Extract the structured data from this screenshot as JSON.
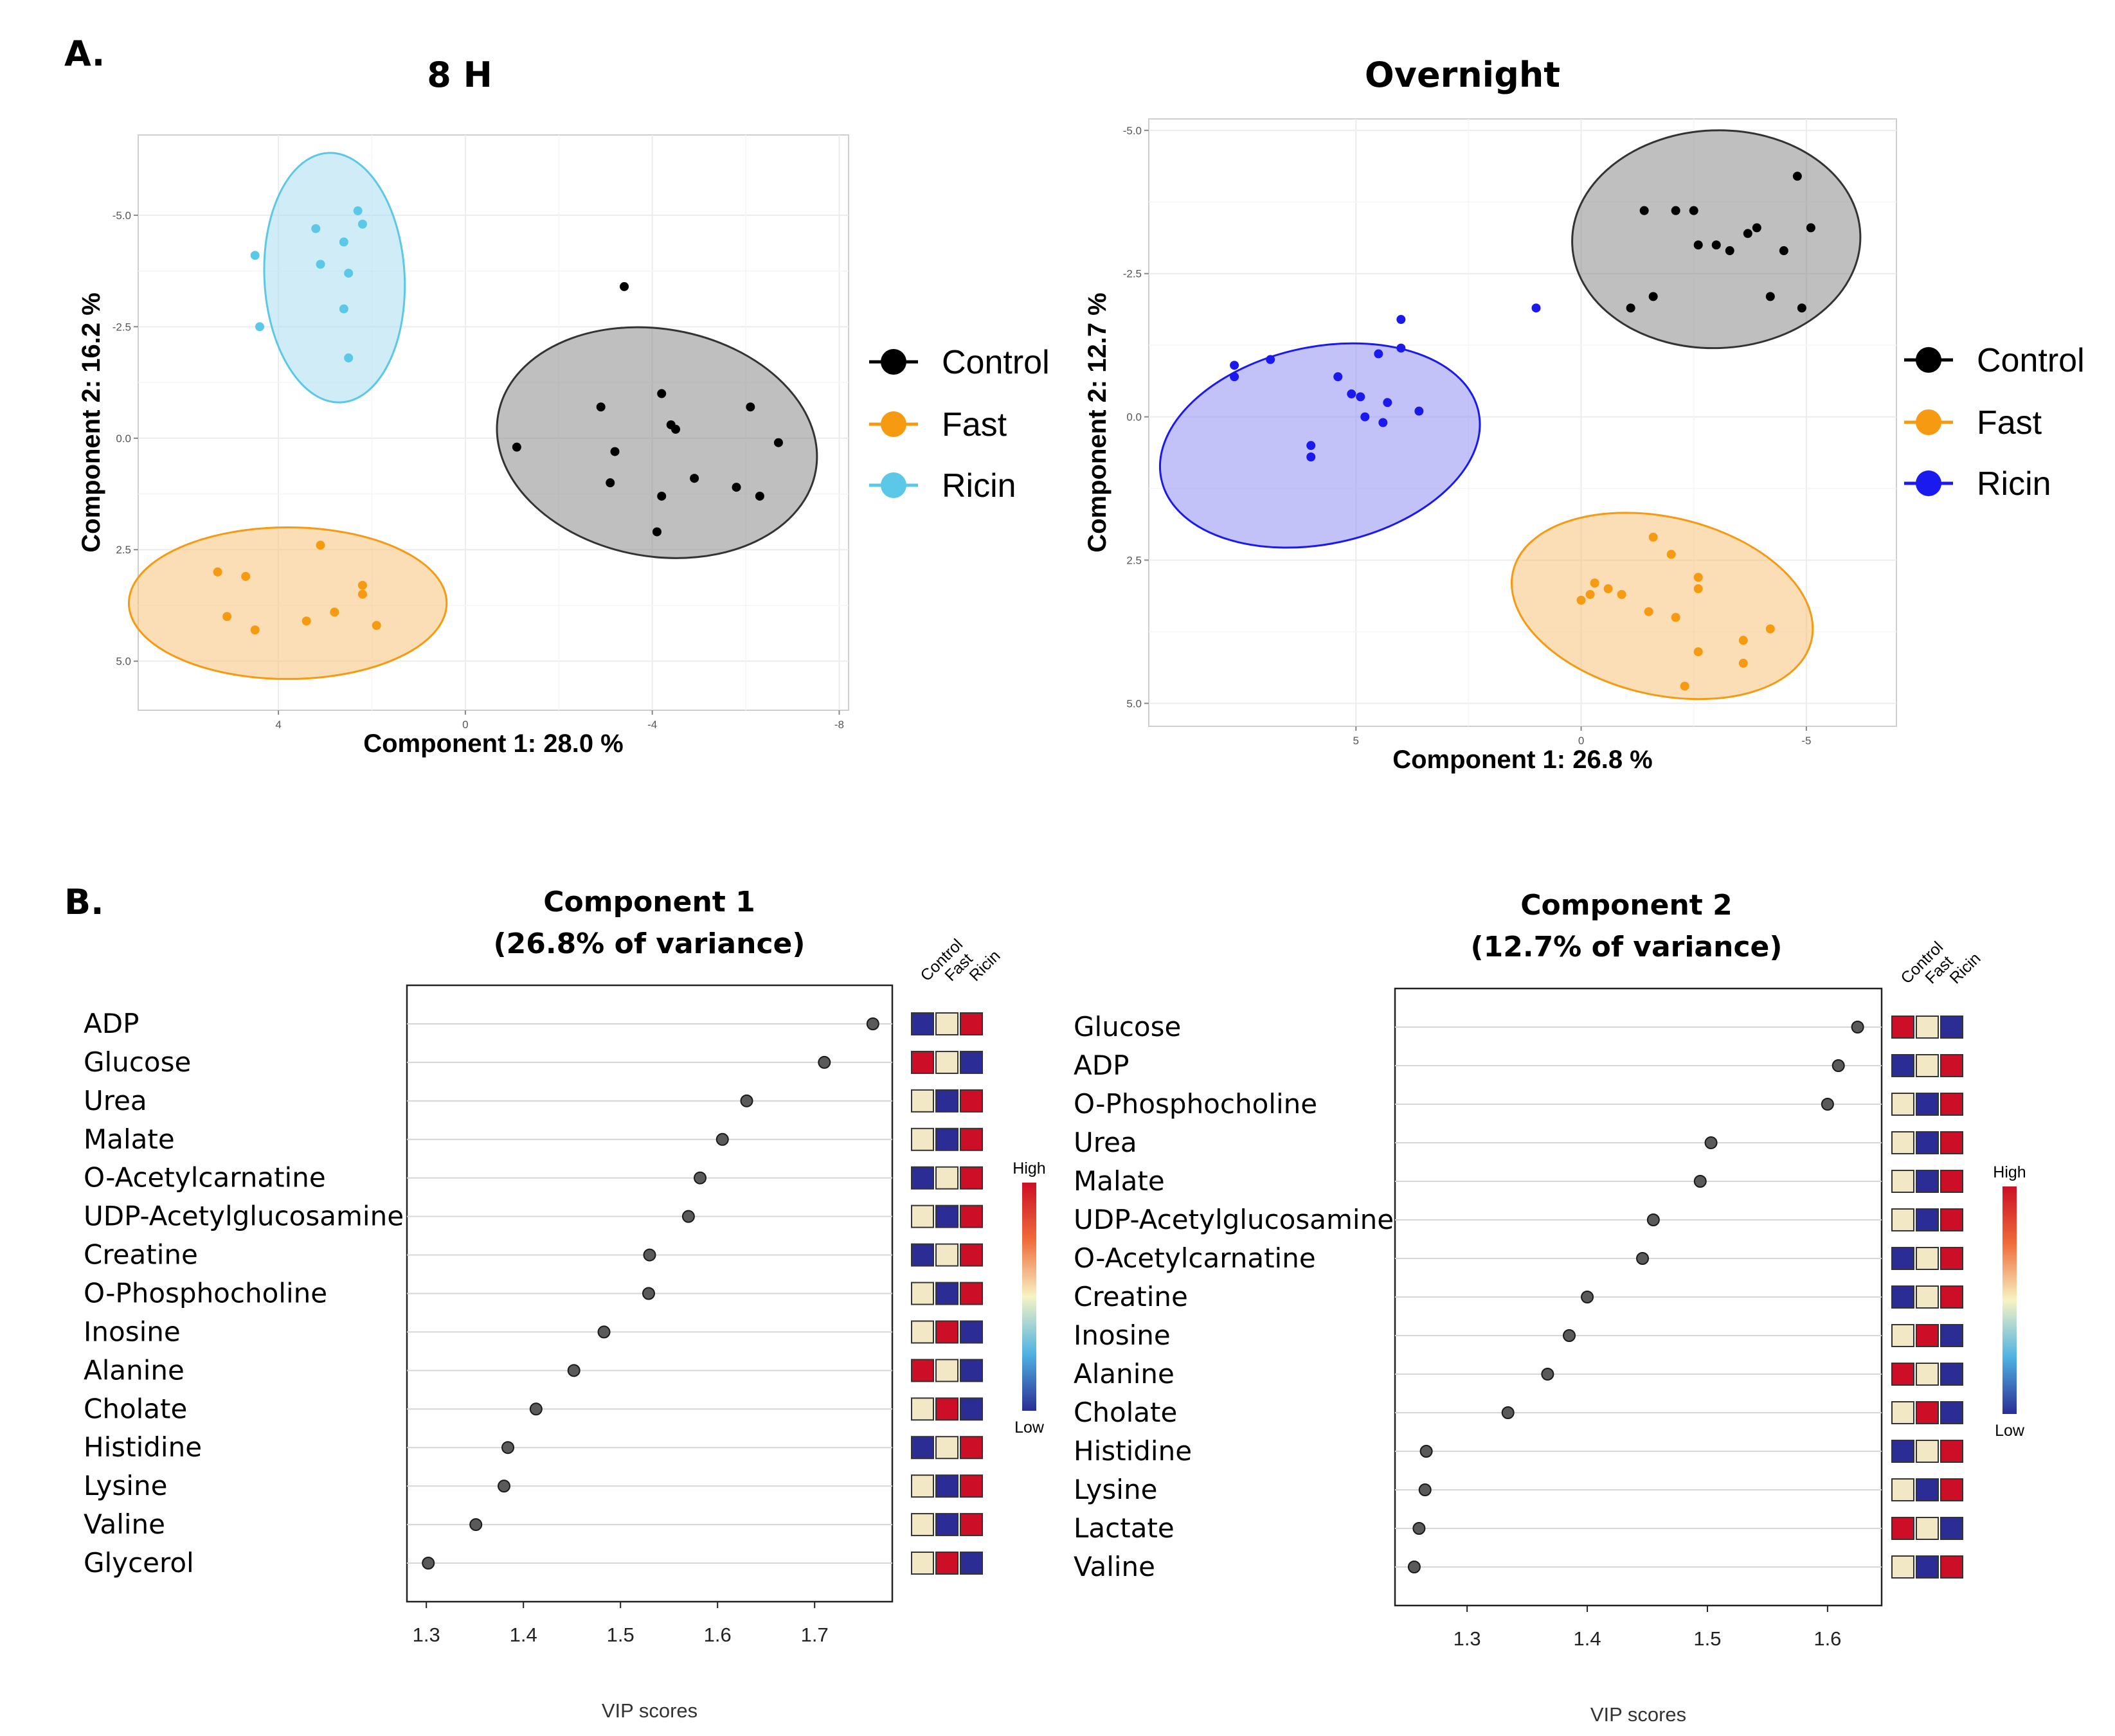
{
  "panel_labels": [
    "A.",
    "B."
  ],
  "colors": {
    "control": "#000000",
    "fast": "#f59a11",
    "ricin_8h": "#5bc8e8",
    "ricin_overnight": "#1a1aee",
    "ellipse_control": "#8a8a8a",
    "ellipse_fast": "#f7c27a",
    "ellipse_ricin_8h": "#a9dff1",
    "ellipse_ricin_overnight": "#8f8ff2",
    "heat_high": "#cc0f26",
    "heat_mid": "#f2e8c6",
    "heat_low": "#2b2d94"
  },
  "chart_data": [
    {
      "type": "scatter",
      "title": "8 H",
      "xlabel": "Component 1: 28.0 %",
      "ylabel": "Component 2: 16.2 %",
      "xlim": [
        7,
        -8.2
      ],
      "ylim": [
        -6.8,
        6.1
      ],
      "xticks": [
        4,
        0,
        -4,
        -8
      ],
      "xtick_labels": [
        "4",
        "0",
        "-4",
        "-8"
      ],
      "yticks": [
        -5,
        -2.5,
        0,
        2.5,
        5
      ],
      "ytick_labels": [
        "-5.0",
        "-2.5",
        "0.0",
        "2.5",
        "5.0"
      ],
      "grid": true,
      "legend": {
        "placement": "right",
        "entries": [
          "Control",
          "Fast",
          "Ricin"
        ]
      },
      "series": [
        {
          "name": "Control",
          "color_key": "control",
          "ellipse_key": "ellipse_control",
          "ellipse": {
            "cx": -4.1,
            "cy": 0.1,
            "rx": 3.45,
            "ry": 2.55,
            "angle_deg": 10
          },
          "points": [
            [
              -3.4,
              -3.4
            ],
            [
              -1.1,
              0.2
            ],
            [
              -2.9,
              -0.7
            ],
            [
              -4.2,
              -1.0
            ],
            [
              -4.4,
              -0.3
            ],
            [
              -4.5,
              -0.2
            ],
            [
              -3.2,
              0.3
            ],
            [
              -3.1,
              1.0
            ],
            [
              -4.9,
              0.9
            ],
            [
              -4.2,
              1.3
            ],
            [
              -6.1,
              -0.7
            ],
            [
              -6.7,
              0.1
            ],
            [
              -5.8,
              1.1
            ],
            [
              -6.3,
              1.3
            ],
            [
              -4.1,
              2.1
            ]
          ]
        },
        {
          "name": "Fast",
          "color_key": "fast",
          "ellipse_key": "ellipse_fast",
          "ellipse": {
            "cx": 3.8,
            "cy": 3.7,
            "rx": 3.4,
            "ry": 1.7,
            "angle_deg": 0
          },
          "points": [
            [
              3.1,
              2.4
            ],
            [
              5.3,
              3.0
            ],
            [
              4.7,
              3.1
            ],
            [
              2.2,
              3.3
            ],
            [
              2.2,
              3.5
            ],
            [
              5.1,
              4.0
            ],
            [
              4.5,
              4.3
            ],
            [
              3.4,
              4.1
            ],
            [
              2.8,
              3.9
            ],
            [
              1.9,
              4.2
            ]
          ]
        },
        {
          "name": "Ricin",
          "color_key": "ricin_8h",
          "ellipse_key": "ellipse_ricin_8h",
          "ellipse": {
            "cx": 2.8,
            "cy": -3.6,
            "rx": 1.5,
            "ry": 2.8,
            "angle_deg": -3
          },
          "points": [
            [
              2.3,
              -5.1
            ],
            [
              2.2,
              -4.8
            ],
            [
              3.2,
              -4.7
            ],
            [
              2.6,
              -4.4
            ],
            [
              4.5,
              -4.1
            ],
            [
              3.1,
              -3.9
            ],
            [
              2.5,
              -3.7
            ],
            [
              2.6,
              -2.9
            ],
            [
              4.4,
              -2.5
            ],
            [
              2.5,
              -1.8
            ]
          ]
        }
      ]
    },
    {
      "type": "scatter",
      "title": "Overnight",
      "xlabel": "Component 1: 26.8 %",
      "ylabel": "Component 2: 12.7 %",
      "xlim": [
        9.6,
        -7.0
      ],
      "ylim": [
        -5.2,
        5.4
      ],
      "xticks": [
        5,
        0,
        -5
      ],
      "xtick_labels": [
        "5",
        "0",
        "-5"
      ],
      "yticks": [
        -5,
        -2.5,
        0,
        2.5,
        5
      ],
      "ytick_labels": [
        "-5.0",
        "-2.5",
        "0.0",
        "2.5",
        "5.0"
      ],
      "grid": true,
      "legend": {
        "placement": "right",
        "entries": [
          "Control",
          "Fast",
          "Ricin"
        ]
      },
      "series": [
        {
          "name": "Control",
          "color_key": "control",
          "ellipse_key": "ellipse_control",
          "ellipse": {
            "cx": -3.0,
            "cy": -3.1,
            "rx": 3.2,
            "ry": 1.9,
            "angle_deg": -2
          },
          "points": [
            [
              -4.8,
              -4.2
            ],
            [
              -1.4,
              -3.6
            ],
            [
              -2.1,
              -3.6
            ],
            [
              -2.5,
              -3.6
            ],
            [
              -5.1,
              -3.3
            ],
            [
              -3.9,
              -3.3
            ],
            [
              -3.7,
              -3.2
            ],
            [
              -2.6,
              -3.0
            ],
            [
              -3.0,
              -3.0
            ],
            [
              -3.3,
              -2.9
            ],
            [
              -4.5,
              -2.9
            ],
            [
              -1.6,
              -2.1
            ],
            [
              -4.2,
              -2.1
            ],
            [
              -1.1,
              -1.9
            ],
            [
              -4.9,
              -1.9
            ]
          ]
        },
        {
          "name": "Fast",
          "color_key": "fast",
          "ellipse_key": "ellipse_fast",
          "ellipse": {
            "cx": -1.8,
            "cy": 3.3,
            "rx": 3.4,
            "ry": 1.55,
            "angle_deg": 13
          },
          "points": [
            [
              -1.6,
              2.1
            ],
            [
              -2.0,
              2.4
            ],
            [
              -2.6,
              2.8
            ],
            [
              -2.6,
              3.0
            ],
            [
              -0.3,
              2.9
            ],
            [
              -0.6,
              3.0
            ],
            [
              -0.9,
              3.1
            ],
            [
              -0.2,
              3.1
            ],
            [
              0.0,
              3.2
            ],
            [
              -1.5,
              3.4
            ],
            [
              -2.1,
              3.5
            ],
            [
              -4.2,
              3.7
            ],
            [
              -3.6,
              3.9
            ],
            [
              -2.6,
              4.1
            ],
            [
              -3.6,
              4.3
            ],
            [
              -2.3,
              4.7
            ]
          ]
        },
        {
          "name": "Ricin",
          "color_key": "ricin_overnight",
          "ellipse_key": "ellipse_ricin_overnight",
          "ellipse": {
            "cx": 5.8,
            "cy": 0.5,
            "rx": 3.6,
            "ry": 1.72,
            "angle_deg": -12
          },
          "points": [
            [
              4.0,
              -1.7
            ],
            [
              1.0,
              -1.9
            ],
            [
              4.0,
              -1.2
            ],
            [
              4.5,
              -1.1
            ],
            [
              6.9,
              -1.0
            ],
            [
              7.7,
              -0.9
            ],
            [
              7.7,
              -0.7
            ],
            [
              5.4,
              -0.7
            ],
            [
              5.1,
              -0.4
            ],
            [
              4.9,
              -0.35
            ],
            [
              4.3,
              -0.25
            ],
            [
              3.6,
              -0.1
            ],
            [
              4.8,
              0.0
            ],
            [
              4.4,
              0.1
            ],
            [
              6.0,
              0.5
            ],
            [
              6.0,
              0.7
            ]
          ]
        }
      ]
    },
    {
      "type": "scatter",
      "chart_kind": "dot-plot",
      "title": "Component 1",
      "subtitle": "(26.8% of variance)",
      "xlabel": "VIP scores",
      "xlim": [
        1.28,
        1.78
      ],
      "xticks": [
        1.3,
        1.4,
        1.5,
        1.6,
        1.7
      ],
      "xtick_labels": [
        "1.3",
        "1.4",
        "1.5",
        "1.6",
        "1.7"
      ],
      "heatmap_columns": [
        "Control",
        "Fast",
        "Ricin"
      ],
      "colorbar": {
        "high_label": "High",
        "low_label": "Low"
      },
      "categories": [
        "ADP",
        "Glucose",
        "Urea",
        "Malate",
        "O-Acetylcarnatine",
        "UDP-Acetylglucosamine",
        "Creatine",
        "O-Phosphocholine",
        "Inosine",
        "Alanine",
        "Cholate",
        "Histidine",
        "Lysine",
        "Valine",
        "Glycerol"
      ],
      "values": [
        1.76,
        1.71,
        1.63,
        1.605,
        1.582,
        1.57,
        1.53,
        1.529,
        1.483,
        1.452,
        1.413,
        1.384,
        1.38,
        1.351,
        1.302
      ],
      "heatmap": [
        [
          "L",
          "M",
          "H"
        ],
        [
          "H",
          "M",
          "L"
        ],
        [
          "M",
          "L",
          "H"
        ],
        [
          "M",
          "L",
          "H"
        ],
        [
          "L",
          "M",
          "H"
        ],
        [
          "M",
          "L",
          "H"
        ],
        [
          "L",
          "M",
          "H"
        ],
        [
          "M",
          "L",
          "H"
        ],
        [
          "M",
          "H",
          "L"
        ],
        [
          "H",
          "M",
          "L"
        ],
        [
          "M",
          "H",
          "L"
        ],
        [
          "L",
          "M",
          "H"
        ],
        [
          "M",
          "L",
          "H"
        ],
        [
          "M",
          "L",
          "H"
        ],
        [
          "M",
          "H",
          "L"
        ]
      ]
    },
    {
      "type": "scatter",
      "chart_kind": "dot-plot",
      "title": "Component 2",
      "subtitle": "(12.7% of variance)",
      "xlabel": "VIP scores",
      "xlim": [
        1.24,
        1.645
      ],
      "xticks": [
        1.3,
        1.4,
        1.5,
        1.6
      ],
      "xtick_labels": [
        "1.3",
        "1.4",
        "1.5",
        "1.6"
      ],
      "heatmap_columns": [
        "Control",
        "Fast",
        "Ricin"
      ],
      "colorbar": {
        "high_label": "High",
        "low_label": "Low"
      },
      "categories": [
        "Glucose",
        "ADP",
        "O-Phosphocholine",
        "Urea",
        "Malate",
        "UDP-Acetylglucosamine",
        "O-Acetylcarnatine",
        "Creatine",
        "Inosine",
        "Alanine",
        "Cholate",
        "Histidine",
        "Lysine",
        "Lactate",
        "Valine"
      ],
      "values": [
        1.625,
        1.609,
        1.6,
        1.503,
        1.494,
        1.455,
        1.446,
        1.4,
        1.385,
        1.367,
        1.334,
        1.266,
        1.265,
        1.26,
        1.256
      ],
      "heatmap": [
        [
          "H",
          "M",
          "L"
        ],
        [
          "L",
          "M",
          "H"
        ],
        [
          "M",
          "L",
          "H"
        ],
        [
          "M",
          "L",
          "H"
        ],
        [
          "M",
          "L",
          "H"
        ],
        [
          "M",
          "L",
          "H"
        ],
        [
          "L",
          "M",
          "H"
        ],
        [
          "L",
          "M",
          "H"
        ],
        [
          "M",
          "H",
          "L"
        ],
        [
          "H",
          "M",
          "L"
        ],
        [
          "M",
          "H",
          "L"
        ],
        [
          "L",
          "M",
          "H"
        ],
        [
          "M",
          "L",
          "H"
        ],
        [
          "H",
          "M",
          "L"
        ],
        [
          "M",
          "L",
          "H"
        ]
      ]
    }
  ]
}
